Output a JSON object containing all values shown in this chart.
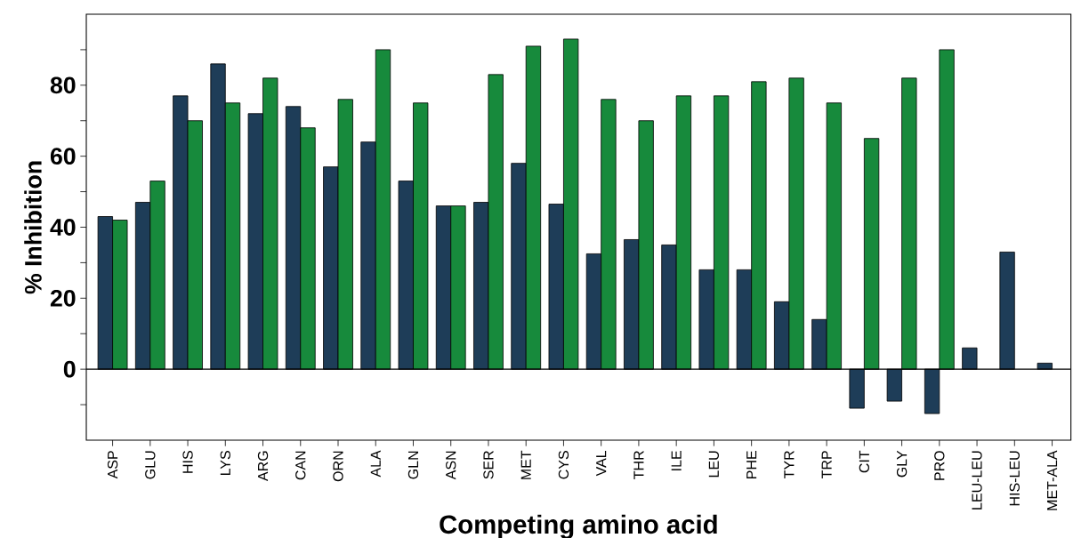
{
  "chart_data": {
    "type": "bar",
    "xlabel": "Competing amino acid",
    "ylabel": "% Inhibition",
    "categories": [
      "ASP",
      "GLU",
      "HIS",
      "LYS",
      "ARG",
      "CAN",
      "ORN",
      "ALA",
      "GLN",
      "ASN",
      "SER",
      "MET",
      "CYS",
      "VAL",
      "THR",
      "ILE",
      "LEU",
      "PHE",
      "TYR",
      "TRP",
      "CIT",
      "GLY",
      "PRO",
      "LEU-LEU",
      "HIS-LEU",
      "MET-ALA"
    ],
    "series": [
      {
        "color": "#1e3d58",
        "values": [
          43,
          47,
          77,
          86,
          72,
          74,
          57,
          64,
          53,
          46,
          47,
          58,
          46.5,
          32.5,
          36.5,
          35,
          28,
          28,
          19,
          14,
          -11,
          -9,
          -12.5,
          6,
          33,
          1.7
        ]
      },
      {
        "color": "#178a3c",
        "values": [
          42,
          53,
          70,
          75,
          82,
          68,
          76,
          90,
          75,
          46,
          83,
          91,
          93,
          76,
          70,
          77,
          77,
          81,
          82,
          75,
          65,
          82,
          90,
          null,
          null,
          null
        ]
      }
    ],
    "ylim": [
      -20,
      100
    ],
    "yticks": [
      {
        "value": -10,
        "label": null
      },
      0,
      {
        "value": 10,
        "label": null
      },
      20,
      {
        "value": 30,
        "label": null
      },
      40,
      {
        "value": 50,
        "label": null
      },
      60,
      {
        "value": 70,
        "label": null
      },
      80,
      {
        "value": 90,
        "label": null
      }
    ],
    "ref_lines": [
      {
        "axis": "y",
        "value": 0,
        "color": "#000000"
      }
    ]
  }
}
